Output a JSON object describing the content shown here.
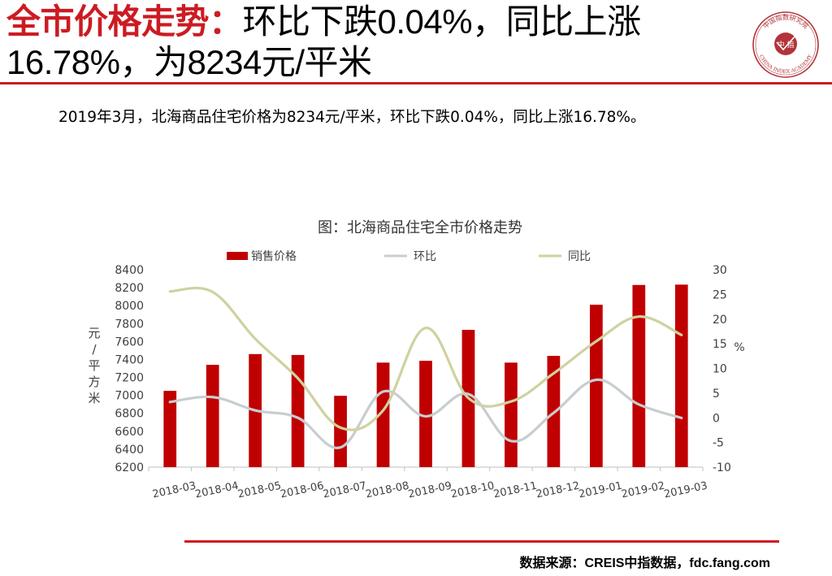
{
  "header": {
    "title_highlight": "全市价格走势：",
    "title_rest": "环比下跌0.04%，同比上涨16.78%，为8234元/平米",
    "logo": {
      "top_text": "中国指数研究院",
      "center_text": "中 指",
      "bottom_text": "CHINA INDEX ACADEMY"
    }
  },
  "summary": "2019年3月，北海商品住宅价格为8234元/平米，环比下跌0.04%，同比上涨16.78%。",
  "chart_data": {
    "type": "bar",
    "title": "图：北海商品住宅全市价格走势",
    "categories": [
      "2018-03",
      "2018-04",
      "2018-05",
      "2018-06",
      "2018-07",
      "2018-08",
      "2018-09",
      "2018-10",
      "2018-11",
      "2018-12",
      "2019-01",
      "2019-02",
      "2019-03"
    ],
    "series": [
      {
        "name": "销售价格",
        "type": "bar",
        "axis": "left",
        "color": "#c00000",
        "values": [
          7050,
          7340,
          7460,
          7450,
          6995,
          7365,
          7385,
          7730,
          7365,
          7440,
          8010,
          8230,
          8234
        ]
      },
      {
        "name": "环比",
        "type": "line",
        "axis": "right",
        "color": "#c7cdd0",
        "values": [
          3.2,
          4.2,
          1.5,
          0.0,
          -6.0,
          5.3,
          0.3,
          4.8,
          -4.7,
          1.0,
          7.7,
          2.7,
          -0.04
        ]
      },
      {
        "name": "同比",
        "type": "line",
        "axis": "right",
        "color": "#cfd2a0",
        "values": [
          25.6,
          25.5,
          16.0,
          8.0,
          -2.0,
          1.5,
          18.2,
          4.0,
          3.3,
          9.0,
          15.5,
          20.5,
          16.78
        ]
      }
    ],
    "ylabel": "元/平方米",
    "ylabel_right": "%",
    "ylim": [
      6200,
      8400
    ],
    "y_ticks": [
      6200,
      6400,
      6600,
      6800,
      7000,
      7200,
      7400,
      7600,
      7800,
      8000,
      8200,
      8400
    ],
    "ylim_right": [
      -10,
      30
    ],
    "y_ticks_right": [
      -10,
      -5,
      0,
      5,
      10,
      15,
      20,
      25,
      30
    ],
    "grid": false,
    "legend_position": "top"
  },
  "footer": {
    "source": "数据来源：CREIS中指数据，fdc.fang.com"
  }
}
